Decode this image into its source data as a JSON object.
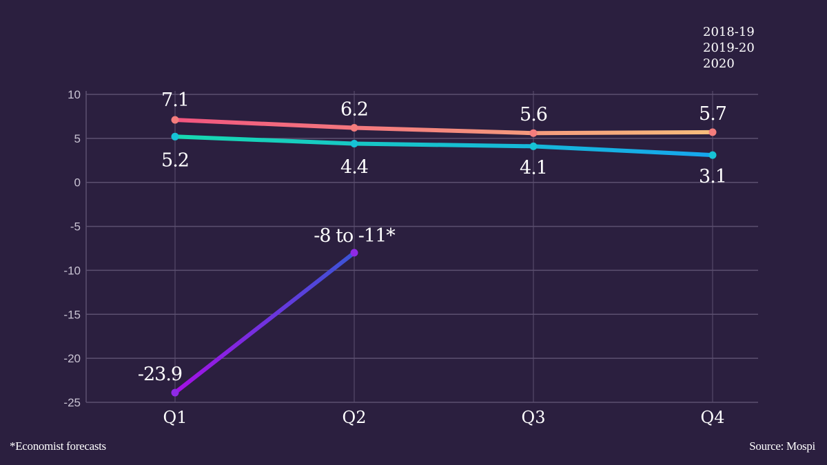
{
  "chart_data": {
    "type": "line",
    "title": "",
    "xlabel": "",
    "ylabel": "",
    "categories": [
      "Q1",
      "Q2",
      "Q3",
      "Q4"
    ],
    "ylim": [
      -25,
      10
    ],
    "yticks": [
      10,
      5,
      0,
      -5,
      -10,
      -15,
      -20,
      -25
    ],
    "grid": true,
    "legend_position": "top-right",
    "series": [
      {
        "name": "2018-19",
        "values": [
          7.1,
          6.2,
          5.6,
          5.7
        ],
        "labels": [
          "7.1",
          "6.2",
          "5.6",
          "5.7"
        ],
        "gradient": [
          "#f2557f",
          "#f6bd7c"
        ]
      },
      {
        "name": "2019-20",
        "values": [
          5.2,
          4.4,
          4.1,
          3.1
        ],
        "labels": [
          "5.2",
          "4.4",
          "4.1",
          "3.1"
        ],
        "gradient": [
          "#17d9b1",
          "#16a6ee"
        ]
      },
      {
        "name": "2020",
        "values": [
          -23.9,
          -8,
          null,
          null
        ],
        "labels": [
          "-23.9",
          "-8 to -11*",
          null,
          null
        ],
        "gradient": [
          "#a60fe6",
          "#3a55d6"
        ]
      }
    ],
    "annotations": [
      "*Economist forecasts",
      "Source: Mospi"
    ]
  },
  "footer": {
    "note": "*Economist forecasts",
    "source": "Source: Mospi"
  },
  "colors": {
    "background": "#2b1f3f",
    "grid": "#5c5070",
    "text": "#ffffff"
  }
}
